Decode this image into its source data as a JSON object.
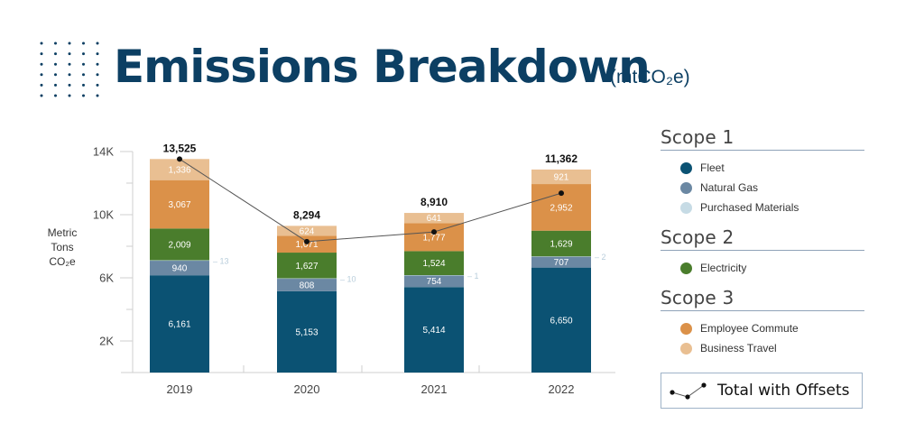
{
  "header": {
    "title": "Emissions Breakdown",
    "subtitle": "(mtCO₂e)"
  },
  "colors": {
    "title": "#0c3f63",
    "fleet": "#0b5273",
    "natural_gas": "#6b88a3",
    "purchased_materials": "#c6dbe5",
    "electricity": "#4a7d2c",
    "employee_commute": "#db9149",
    "business_travel": "#e9bf92",
    "offset_line": "#111111"
  },
  "chart_data": {
    "type": "bar",
    "stacked": true,
    "title": "Emissions Breakdown (mtCO₂e)",
    "xlabel": "",
    "ylabel": "Metric Tons CO₂e",
    "ylabel_lines": [
      "Metric",
      "Tons",
      "CO₂e"
    ],
    "categories": [
      "2019",
      "2020",
      "2021",
      "2022"
    ],
    "ylim": [
      0,
      14000
    ],
    "yticks": [
      {
        "value": 14000,
        "label": "14K"
      },
      {
        "value": 10000,
        "label": "10K"
      },
      {
        "value": 6000,
        "label": "6K"
      },
      {
        "value": 2000,
        "label": "2K"
      }
    ],
    "minor_ticks": [
      12000,
      8000,
      4000
    ],
    "grid": false,
    "series": [
      {
        "name": "Fleet",
        "scope": "Scope 1",
        "color_key": "fleet",
        "values": [
          6161,
          5153,
          5414,
          6650
        ],
        "labels": [
          "6,161",
          "5,153",
          "5,414",
          "6,650"
        ]
      },
      {
        "name": "Natural Gas",
        "scope": "Scope 1",
        "color_key": "natural_gas",
        "values": [
          940,
          808,
          754,
          707
        ],
        "labels": [
          "940",
          "808",
          "754",
          "707"
        ]
      },
      {
        "name": "Purchased Materials",
        "scope": "Scope 1",
        "color_key": "purchased_materials",
        "values": [
          13,
          10,
          1,
          2
        ],
        "labels": [
          "13",
          "10",
          "1",
          "2"
        ],
        "label_outside": true
      },
      {
        "name": "Electricity",
        "scope": "Scope 2",
        "color_key": "electricity",
        "values": [
          2009,
          1627,
          1524,
          1629
        ],
        "labels": [
          "2,009",
          "1,627",
          "1,524",
          "1,629"
        ]
      },
      {
        "name": "Employee Commute",
        "scope": "Scope 3",
        "color_key": "employee_commute",
        "values": [
          3067,
          1071,
          1777,
          2952
        ],
        "labels": [
          "3,067",
          "1,071",
          "1,777",
          "2,952"
        ]
      },
      {
        "name": "Business Travel",
        "scope": "Scope 3",
        "color_key": "business_travel",
        "values": [
          1336,
          624,
          641,
          921
        ],
        "labels": [
          "1,336",
          "624",
          "641",
          "921"
        ]
      }
    ],
    "line": {
      "name": "Total with Offsets",
      "values": [
        13525,
        8294,
        8910,
        11362
      ],
      "labels": [
        "13,525",
        "8,294",
        "8,910",
        "11,362"
      ]
    },
    "legend": [
      {
        "title": "Scope 1",
        "items": [
          {
            "label": "Fleet",
            "color_key": "fleet"
          },
          {
            "label": "Natural Gas",
            "color_key": "natural_gas"
          },
          {
            "label": "Purchased Materials",
            "color_key": "purchased_materials"
          }
        ]
      },
      {
        "title": "Scope 2",
        "items": [
          {
            "label": "Electricity",
            "color_key": "electricity"
          }
        ]
      },
      {
        "title": "Scope 3",
        "items": [
          {
            "label": "Employee Commute",
            "color_key": "employee_commute"
          },
          {
            "label": "Business Travel",
            "color_key": "business_travel"
          }
        ]
      }
    ],
    "legend_position": "right",
    "offset_legend_label": "Total with Offsets"
  }
}
